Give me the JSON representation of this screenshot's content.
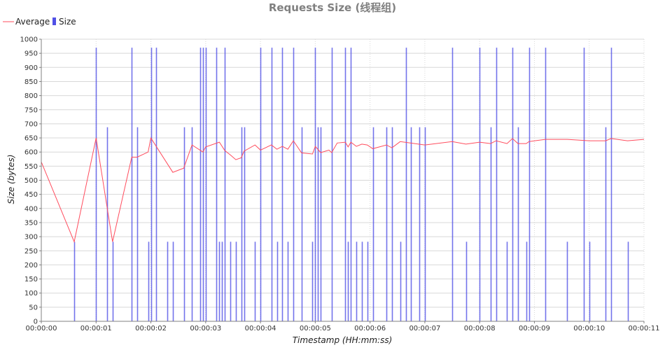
{
  "chart_data": {
    "type": "bar+line",
    "title": "Requests Size (线程组)",
    "xlabel": "Timestamp (HH:mm:ss)",
    "ylabel": "Size (bytes)",
    "xlim": [
      0,
      11
    ],
    "ylim": [
      0,
      1000
    ],
    "y_ticks": [
      0,
      50,
      100,
      150,
      200,
      250,
      300,
      350,
      400,
      450,
      500,
      550,
      600,
      650,
      700,
      750,
      800,
      850,
      900,
      950,
      1000
    ],
    "x_ticks": [
      "00:00:00",
      "00:00:01",
      "00:00:02",
      "00:00:03",
      "00:00:04",
      "00:00:05",
      "00:00:06",
      "00:00:07",
      "00:00:08",
      "00:00:09",
      "00:00:10",
      "00:00:11"
    ],
    "grid": true,
    "legend": "top-left",
    "colors": {
      "average": "#ff4d5e",
      "size": "#5050e6",
      "grid": "#d8d8d8"
    },
    "series": [
      {
        "name": "Average",
        "type": "line",
        "x": [
          0,
          0.6,
          1.0,
          1.3,
          1.65,
          1.75,
          1.95,
          2.0,
          2.4,
          2.6,
          2.75,
          2.95,
          3.0,
          3.25,
          3.35,
          3.45,
          3.55,
          3.65,
          3.7,
          3.9,
          4.0,
          4.2,
          4.3,
          4.4,
          4.5,
          4.6,
          4.75,
          4.95,
          5.0,
          5.1,
          5.25,
          5.3,
          5.4,
          5.55,
          5.6,
          5.65,
          5.75,
          5.85,
          5.95,
          6.05,
          6.3,
          6.4,
          6.55,
          7.0,
          7.5,
          7.75,
          8.0,
          8.2,
          8.3,
          8.5,
          8.6,
          8.7,
          8.85,
          8.9,
          9.2,
          9.6,
          10.0,
          10.3,
          10.4,
          10.7,
          11.0
        ],
        "y": [
          565,
          282,
          650,
          282,
          582,
          582,
          600,
          650,
          528,
          543,
          625,
          600,
          618,
          635,
          605,
          590,
          573,
          580,
          603,
          625,
          607,
          625,
          610,
          620,
          610,
          640,
          597,
          593,
          620,
          598,
          607,
          598,
          632,
          635,
          618,
          635,
          620,
          628,
          625,
          612,
          625,
          615,
          637,
          625,
          637,
          628,
          635,
          630,
          640,
          630,
          648,
          630,
          630,
          637,
          645,
          645,
          640,
          640,
          648,
          640,
          645
        ]
      },
      {
        "name": "Size",
        "type": "bar",
        "x": [
          0.6,
          1.0,
          1.2,
          1.3,
          1.65,
          1.75,
          1.95,
          2.0,
          2.1,
          2.3,
          2.4,
          2.6,
          2.75,
          2.9,
          2.95,
          3.0,
          3.2,
          3.25,
          3.3,
          3.35,
          3.45,
          3.55,
          3.65,
          3.7,
          3.9,
          4.0,
          4.2,
          4.3,
          4.4,
          4.5,
          4.6,
          4.75,
          4.95,
          5.0,
          5.05,
          5.1,
          5.3,
          5.55,
          5.6,
          5.65,
          5.75,
          5.85,
          5.95,
          6.05,
          6.3,
          6.4,
          6.55,
          6.65,
          6.75,
          6.9,
          7.0,
          7.5,
          7.75,
          8.0,
          8.2,
          8.3,
          8.5,
          8.6,
          8.7,
          8.85,
          8.9,
          9.2,
          9.6,
          9.9,
          10.0,
          10.3,
          10.4,
          10.7
        ],
        "values": [
          282,
          970,
          688,
          282,
          970,
          688,
          282,
          970,
          970,
          282,
          282,
          688,
          688,
          970,
          970,
          970,
          970,
          282,
          282,
          970,
          282,
          282,
          688,
          688,
          282,
          970,
          970,
          282,
          970,
          282,
          970,
          688,
          282,
          970,
          688,
          688,
          970,
          970,
          282,
          970,
          282,
          282,
          282,
          688,
          688,
          688,
          282,
          970,
          688,
          688,
          688,
          970,
          282,
          970,
          688,
          970,
          282,
          970,
          688,
          282,
          970,
          970,
          282,
          970,
          282,
          688,
          970,
          282
        ]
      }
    ]
  }
}
